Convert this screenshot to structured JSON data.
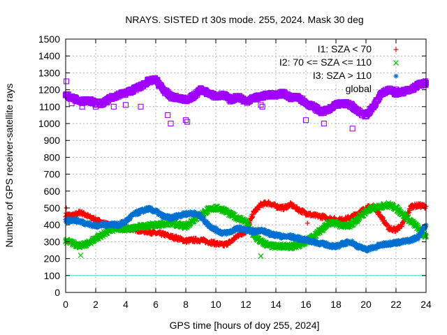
{
  "chart_data": {
    "type": "scatter",
    "title": "NRAYS. SISTED rt 30s mode. 255, 2024. Mask 30 deg",
    "xlabel": "GPS time [hours of doy 255, 2024]",
    "ylabel": "Number of GPS receiver-satellite rays",
    "xlim": [
      0,
      24
    ],
    "ylim": [
      0,
      1500
    ],
    "xticks": [
      0,
      2,
      4,
      6,
      8,
      10,
      12,
      14,
      16,
      18,
      20,
      22,
      24
    ],
    "yticks": [
      0,
      100,
      200,
      300,
      400,
      500,
      600,
      700,
      800,
      900,
      1000,
      1100,
      1200,
      1300,
      1400,
      1500
    ],
    "grid": true,
    "legend_position": "top-right",
    "reference_line": {
      "y": 100,
      "color": "#40d0e0"
    },
    "series": [
      {
        "name": "I1: SZA < 70",
        "marker": "+",
        "color": "#ff0000",
        "x": [
          0,
          0.5,
          1,
          1.5,
          2,
          2.5,
          3,
          3.5,
          4,
          4.5,
          5,
          5.5,
          6,
          6.5,
          7,
          7.5,
          8,
          8.5,
          9,
          9.5,
          10,
          10.5,
          11,
          11.5,
          12,
          12.5,
          13,
          13.5,
          14,
          14.5,
          15,
          15.5,
          16,
          16.5,
          17,
          17.5,
          18,
          18.5,
          19,
          19.5,
          20,
          20.5,
          21,
          21.5,
          22,
          22.5,
          23,
          23.5,
          24
        ],
        "values": [
          460,
          455,
          475,
          450,
          430,
          410,
          395,
          385,
          380,
          375,
          365,
          360,
          350,
          345,
          330,
          320,
          305,
          310,
          310,
          300,
          290,
          280,
          300,
          340,
          360,
          470,
          520,
          530,
          510,
          500,
          520,
          490,
          470,
          455,
          450,
          440,
          430,
          430,
          445,
          470,
          500,
          510,
          450,
          380,
          370,
          410,
          510,
          515,
          510
        ]
      },
      {
        "name": "I2: 70 <= SZA <= 110",
        "marker": "x",
        "color": "#00c000",
        "x": [
          0,
          0.5,
          1,
          1.5,
          2,
          2.5,
          3,
          3.5,
          4,
          4.5,
          5,
          5.5,
          6,
          6.5,
          7,
          7.5,
          8,
          8.5,
          9,
          9.5,
          10,
          10.5,
          11,
          11.5,
          12,
          12.5,
          13,
          13.5,
          14,
          14.5,
          15,
          15.5,
          16,
          16.5,
          17,
          17.5,
          18,
          18.5,
          19,
          19.5,
          20,
          20.5,
          21,
          21.5,
          22,
          22.5,
          23,
          23.5,
          24
        ],
        "values": [
          305,
          290,
          275,
          290,
          320,
          345,
          370,
          380,
          375,
          380,
          390,
          395,
          400,
          405,
          410,
          400,
          390,
          430,
          460,
          490,
          500,
          490,
          460,
          440,
          420,
          340,
          300,
          280,
          270,
          275,
          270,
          280,
          300,
          330,
          370,
          410,
          410,
          390,
          400,
          440,
          480,
          500,
          510,
          520,
          500,
          460,
          420,
          380,
          330
        ]
      },
      {
        "name": "I3: SZA > 110",
        "marker": "*",
        "color": "#0070d0",
        "x": [
          0,
          0.5,
          1,
          1.5,
          2,
          2.5,
          3,
          3.5,
          4,
          4.5,
          5,
          5.5,
          6,
          6.5,
          7,
          7.5,
          8,
          8.5,
          9,
          9.5,
          10,
          10.5,
          11,
          11.5,
          12,
          12.5,
          13,
          13.5,
          14,
          14.5,
          15,
          15.5,
          16,
          16.5,
          17,
          17.5,
          18,
          18.5,
          19,
          19.5,
          20,
          20.5,
          21,
          21.5,
          22,
          22.5,
          23,
          23.5,
          24
        ],
        "values": [
          420,
          430,
          420,
          405,
          395,
          400,
          405,
          400,
          420,
          460,
          480,
          495,
          480,
          450,
          440,
          455,
          465,
          470,
          450,
          400,
          370,
          350,
          360,
          380,
          370,
          360,
          370,
          350,
          340,
          330,
          330,
          320,
          310,
          300,
          290,
          280,
          270,
          290,
          300,
          270,
          255,
          265,
          280,
          290,
          295,
          300,
          310,
          330,
          400
        ]
      },
      {
        "name": "global",
        "marker": "square",
        "color": "#a000ff",
        "x": [
          0,
          0.5,
          1,
          1.5,
          2,
          2.5,
          3,
          3.5,
          4,
          4.5,
          5,
          5.5,
          6,
          6.5,
          7,
          7.5,
          8,
          8.5,
          9,
          9.5,
          10,
          10.5,
          11,
          11.5,
          12,
          12.5,
          13,
          13.5,
          14,
          14.5,
          15,
          15.5,
          16,
          16.5,
          17,
          17.5,
          18,
          18.5,
          19,
          19.5,
          20,
          20.5,
          21,
          21.5,
          22,
          22.5,
          23,
          23.5,
          24
        ],
        "values": [
          1170,
          1150,
          1130,
          1140,
          1120,
          1120,
          1150,
          1170,
          1180,
          1200,
          1220,
          1250,
          1260,
          1200,
          1160,
          1150,
          1140,
          1160,
          1200,
          1180,
          1160,
          1170,
          1140,
          1160,
          1130,
          1150,
          1160,
          1170,
          1170,
          1180,
          1150,
          1160,
          1120,
          1100,
          1070,
          1080,
          1110,
          1120,
          1110,
          1070,
          1050,
          1100,
          1180,
          1200,
          1180,
          1190,
          1200,
          1230,
          1240
        ]
      }
    ],
    "outliers": [
      {
        "series": "global",
        "x": [
          0.05,
          0.4,
          1.1,
          2,
          3.2,
          4,
          5,
          6.8,
          7,
          8,
          8.1,
          13,
          13.1,
          16,
          17.2,
          19.1
        ],
        "values": [
          1250,
          1120,
          1100,
          1100,
          1100,
          1110,
          1100,
          1050,
          1000,
          1020,
          1010,
          1110,
          1100,
          1020,
          1000,
          970
        ]
      },
      {
        "series": "I1: SZA < 70",
        "x": [
          0.05,
          16.1
        ],
        "values": [
          500,
          410
        ]
      },
      {
        "series": "I2: 70 <= SZA <= 110",
        "x": [
          1,
          13
        ],
        "values": [
          220,
          215
        ]
      }
    ]
  }
}
